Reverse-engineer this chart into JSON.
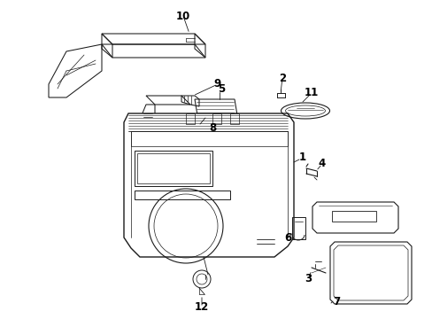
{
  "bg_color": "#ffffff",
  "line_color": "#1a1a1a",
  "label_color": "#000000",
  "lw": 0.75,
  "label_fs": 8.5,
  "figw": 4.89,
  "figh": 3.6,
  "dpi": 100
}
